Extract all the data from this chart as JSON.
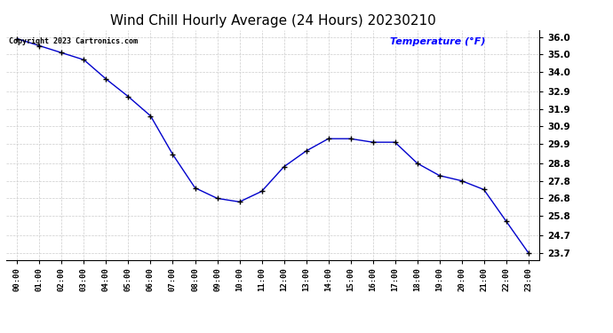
{
  "title": "Wind Chill Hourly Average (24 Hours) 20230210",
  "ylabel": "Temperature (°F)",
  "copyright_text": "Copyright 2023 Cartronics.com",
  "hours": [
    "00:00",
    "01:00",
    "02:00",
    "03:00",
    "04:00",
    "05:00",
    "06:00",
    "07:00",
    "08:00",
    "09:00",
    "10:00",
    "11:00",
    "12:00",
    "13:00",
    "14:00",
    "15:00",
    "16:00",
    "17:00",
    "18:00",
    "19:00",
    "20:00",
    "21:00",
    "22:00",
    "23:00"
  ],
  "values": [
    35.9,
    35.5,
    35.1,
    34.7,
    33.6,
    32.6,
    31.5,
    29.3,
    27.4,
    26.8,
    26.6,
    27.2,
    28.6,
    29.5,
    30.2,
    30.2,
    30.0,
    30.0,
    28.8,
    28.1,
    27.8,
    27.3,
    25.5,
    23.7
  ],
  "yticks": [
    36.0,
    35.0,
    34.0,
    32.9,
    31.9,
    30.9,
    29.9,
    28.8,
    27.8,
    26.8,
    25.8,
    24.7,
    23.7
  ],
  "ylim": [
    23.3,
    36.4
  ],
  "xlim": [
    -0.5,
    23.5
  ],
  "line_color": "#0000cc",
  "marker_color": "#000000",
  "background_color": "#ffffff",
  "title_fontsize": 11,
  "ylabel_color": "#0000ff",
  "copyright_color": "#000000",
  "grid_color": "#cccccc"
}
